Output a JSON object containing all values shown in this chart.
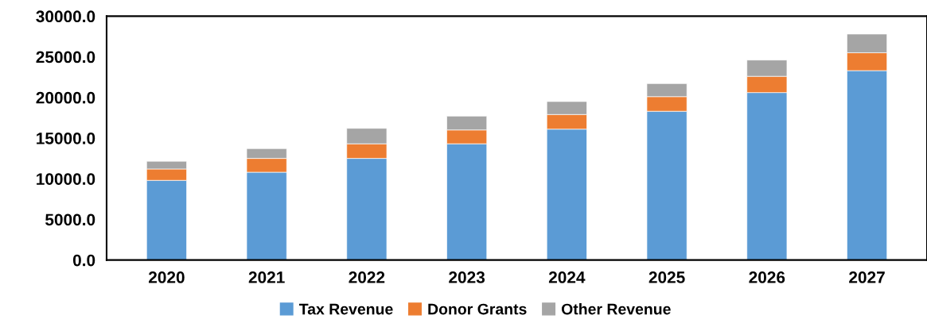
{
  "chart_data": {
    "type": "bar",
    "stacked": true,
    "categories": [
      "2020",
      "2021",
      "2022",
      "2023",
      "2024",
      "2025",
      "2026",
      "2027"
    ],
    "series": [
      {
        "name": "Tax Revenue",
        "color": "#5b9bd5",
        "values": [
          9800,
          10800,
          12500,
          14300,
          16100,
          18300,
          20600,
          23300
        ]
      },
      {
        "name": "Donor Grants",
        "color": "#ed7d31",
        "values": [
          1400,
          1700,
          1800,
          1700,
          1800,
          1800,
          2000,
          2200
        ]
      },
      {
        "name": "Other Revenue",
        "color": "#a5a5a5",
        "values": [
          950,
          1200,
          1900,
          1700,
          1600,
          1600,
          2000,
          2300
        ]
      }
    ],
    "ylim": [
      0,
      30000
    ],
    "yticks": [
      {
        "value": 0,
        "label": "0.0"
      },
      {
        "value": 5000,
        "label": "5000.0"
      },
      {
        "value": 10000,
        "label": "10000.0"
      },
      {
        "value": 15000,
        "label": "15000.0"
      },
      {
        "value": 20000,
        "label": "20000.0"
      },
      {
        "value": 25000,
        "label": "25000.0"
      },
      {
        "value": 30000,
        "label": "30000.0"
      }
    ],
    "grid": false,
    "legend": "bottom"
  }
}
